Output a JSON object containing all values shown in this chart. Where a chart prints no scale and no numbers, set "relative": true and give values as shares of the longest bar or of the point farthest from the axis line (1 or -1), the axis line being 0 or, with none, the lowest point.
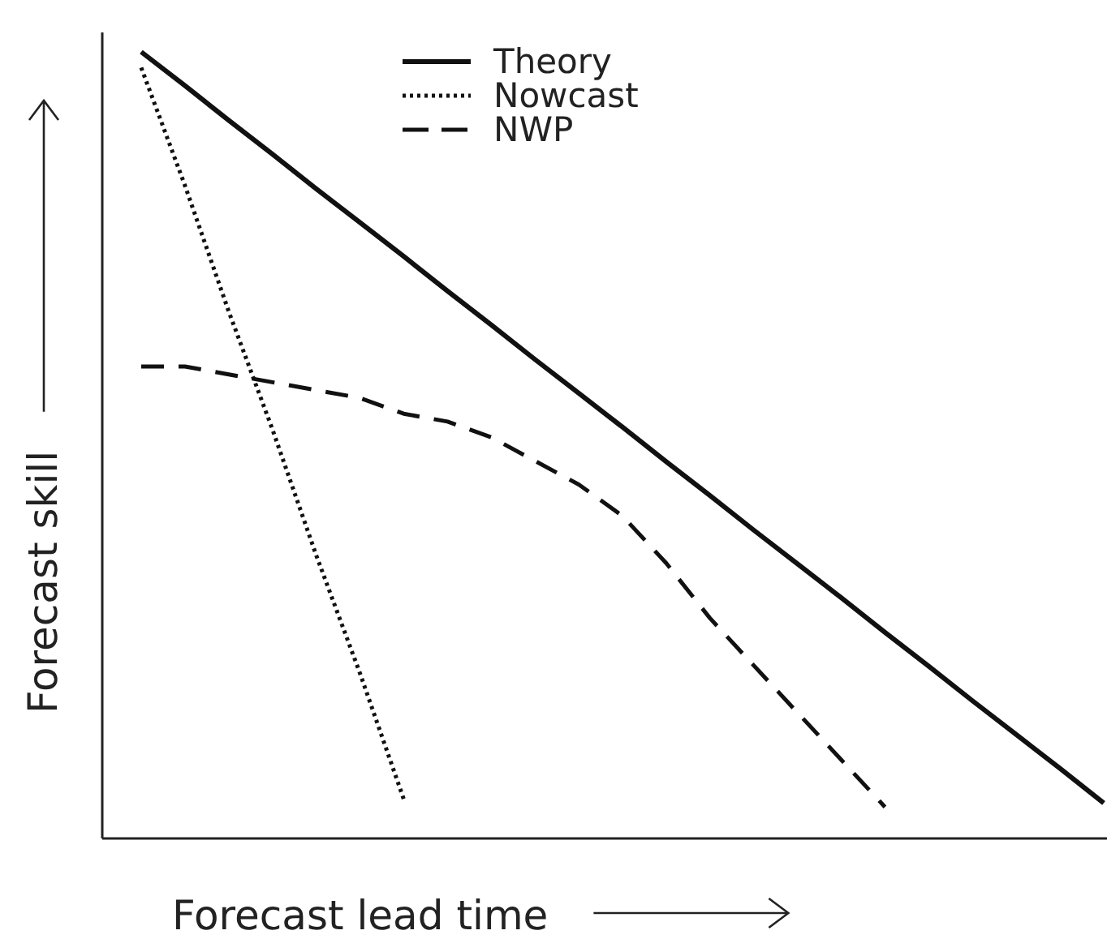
{
  "chart_data": {
    "type": "line",
    "relative": true,
    "xlabel": "Forecast lead time",
    "ylabel": "Forecast skill",
    "legend": "top",
    "marker": "none",
    "categories": [
      null,
      null,
      null,
      null,
      null,
      null,
      null,
      null,
      null,
      null,
      null,
      null,
      null,
      null,
      null,
      null,
      null,
      null,
      null,
      null,
      null,
      null,
      null
    ],
    "series": [
      {
        "name": "Theory",
        "color": "#111111",
        "line_style": "solid",
        "values": [
          1,
          0.957,
          0.913,
          0.87,
          0.826,
          0.783,
          0.74,
          0.696,
          0.653,
          0.609,
          0.566,
          0.523,
          0.479,
          0.436,
          0.392,
          0.349,
          0.306,
          0.262,
          0.219,
          0.175,
          0.132,
          0.089,
          0.045
        ]
      },
      {
        "name": "Nowcast",
        "color": "#111111",
        "line_style": "dotted",
        "values": [
          0.98,
          0.83,
          0.67,
          0.52,
          0.36,
          0.21,
          0.05,
          null,
          null,
          null,
          null,
          null,
          null,
          null,
          null,
          null,
          null,
          null,
          null,
          null,
          null,
          null,
          null
        ]
      },
      {
        "name": "NWP",
        "color": "#111111",
        "line_style": "dashed",
        "values": [
          0.6,
          0.6,
          0.59,
          0.58,
          0.57,
          0.56,
          0.54,
          0.53,
          0.51,
          0.48,
          0.45,
          0.41,
          0.35,
          0.28,
          0.22,
          0.16,
          0.1,
          0.04,
          null,
          null,
          null,
          null,
          null
        ]
      }
    ]
  }
}
